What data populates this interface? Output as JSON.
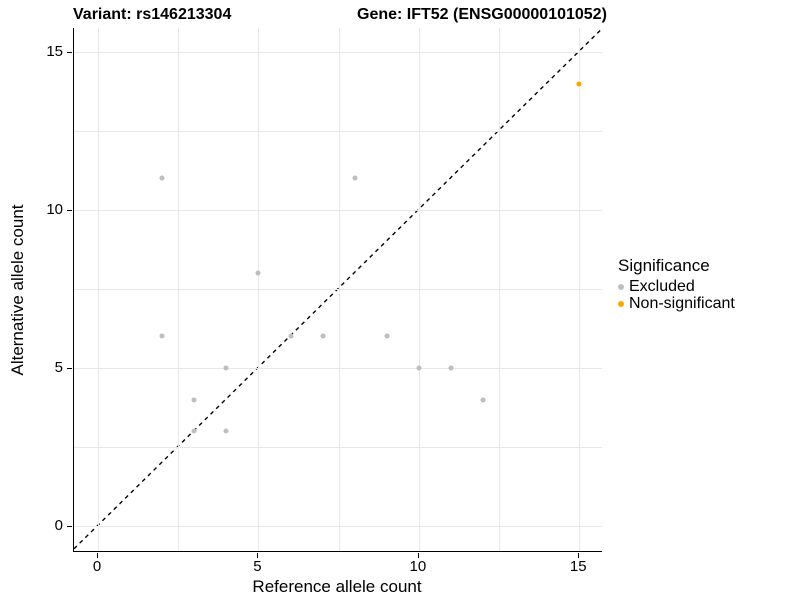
{
  "title_left": "Variant: rs146213304",
  "title_right": "Gene: IFT52 (ENSG00000101052)",
  "colors": {
    "excluded": "#BEBEBE",
    "non_significant": "#FFA500",
    "grid": "#E8E8E8",
    "axis_line": "#000000",
    "abline": "#000000"
  },
  "legend": {
    "title": "Significance",
    "items": [
      {
        "label": "Excluded",
        "color": "#BEBEBE"
      },
      {
        "label": "Non-significant",
        "color": "#FFA500"
      }
    ]
  },
  "chart_data": {
    "type": "scatter",
    "title": "Variant: rs146213304   Gene: IFT52 (ENSG00000101052)",
    "xlabel": "Reference allele count",
    "ylabel": "Alternative allele count",
    "xlim": [
      -0.75,
      15.74
    ],
    "ylim": [
      -0.82,
      15.76
    ],
    "x_ticks": [
      0,
      5,
      10,
      15
    ],
    "y_ticks": [
      0,
      5,
      10,
      15
    ],
    "minor_breaks": [
      2.5,
      7.5,
      12.5
    ],
    "grid": true,
    "legend_position": "right",
    "identity_line": {
      "slope": 1,
      "intercept": 0,
      "style": "dashed",
      "color": "#000000"
    },
    "series": [
      {
        "name": "Excluded",
        "color": "#BEBEBE",
        "points": [
          [
            2,
            11
          ],
          [
            8,
            11
          ],
          [
            5,
            8
          ],
          [
            2,
            6
          ],
          [
            6,
            6
          ],
          [
            7,
            6
          ],
          [
            9,
            6
          ],
          [
            4,
            5
          ],
          [
            10,
            5
          ],
          [
            11,
            5
          ],
          [
            3,
            4
          ],
          [
            12,
            4
          ],
          [
            3,
            3
          ],
          [
            4,
            3
          ]
        ]
      },
      {
        "name": "Non-significant",
        "color": "#FFA500",
        "points": [
          [
            15,
            14
          ]
        ]
      }
    ]
  }
}
